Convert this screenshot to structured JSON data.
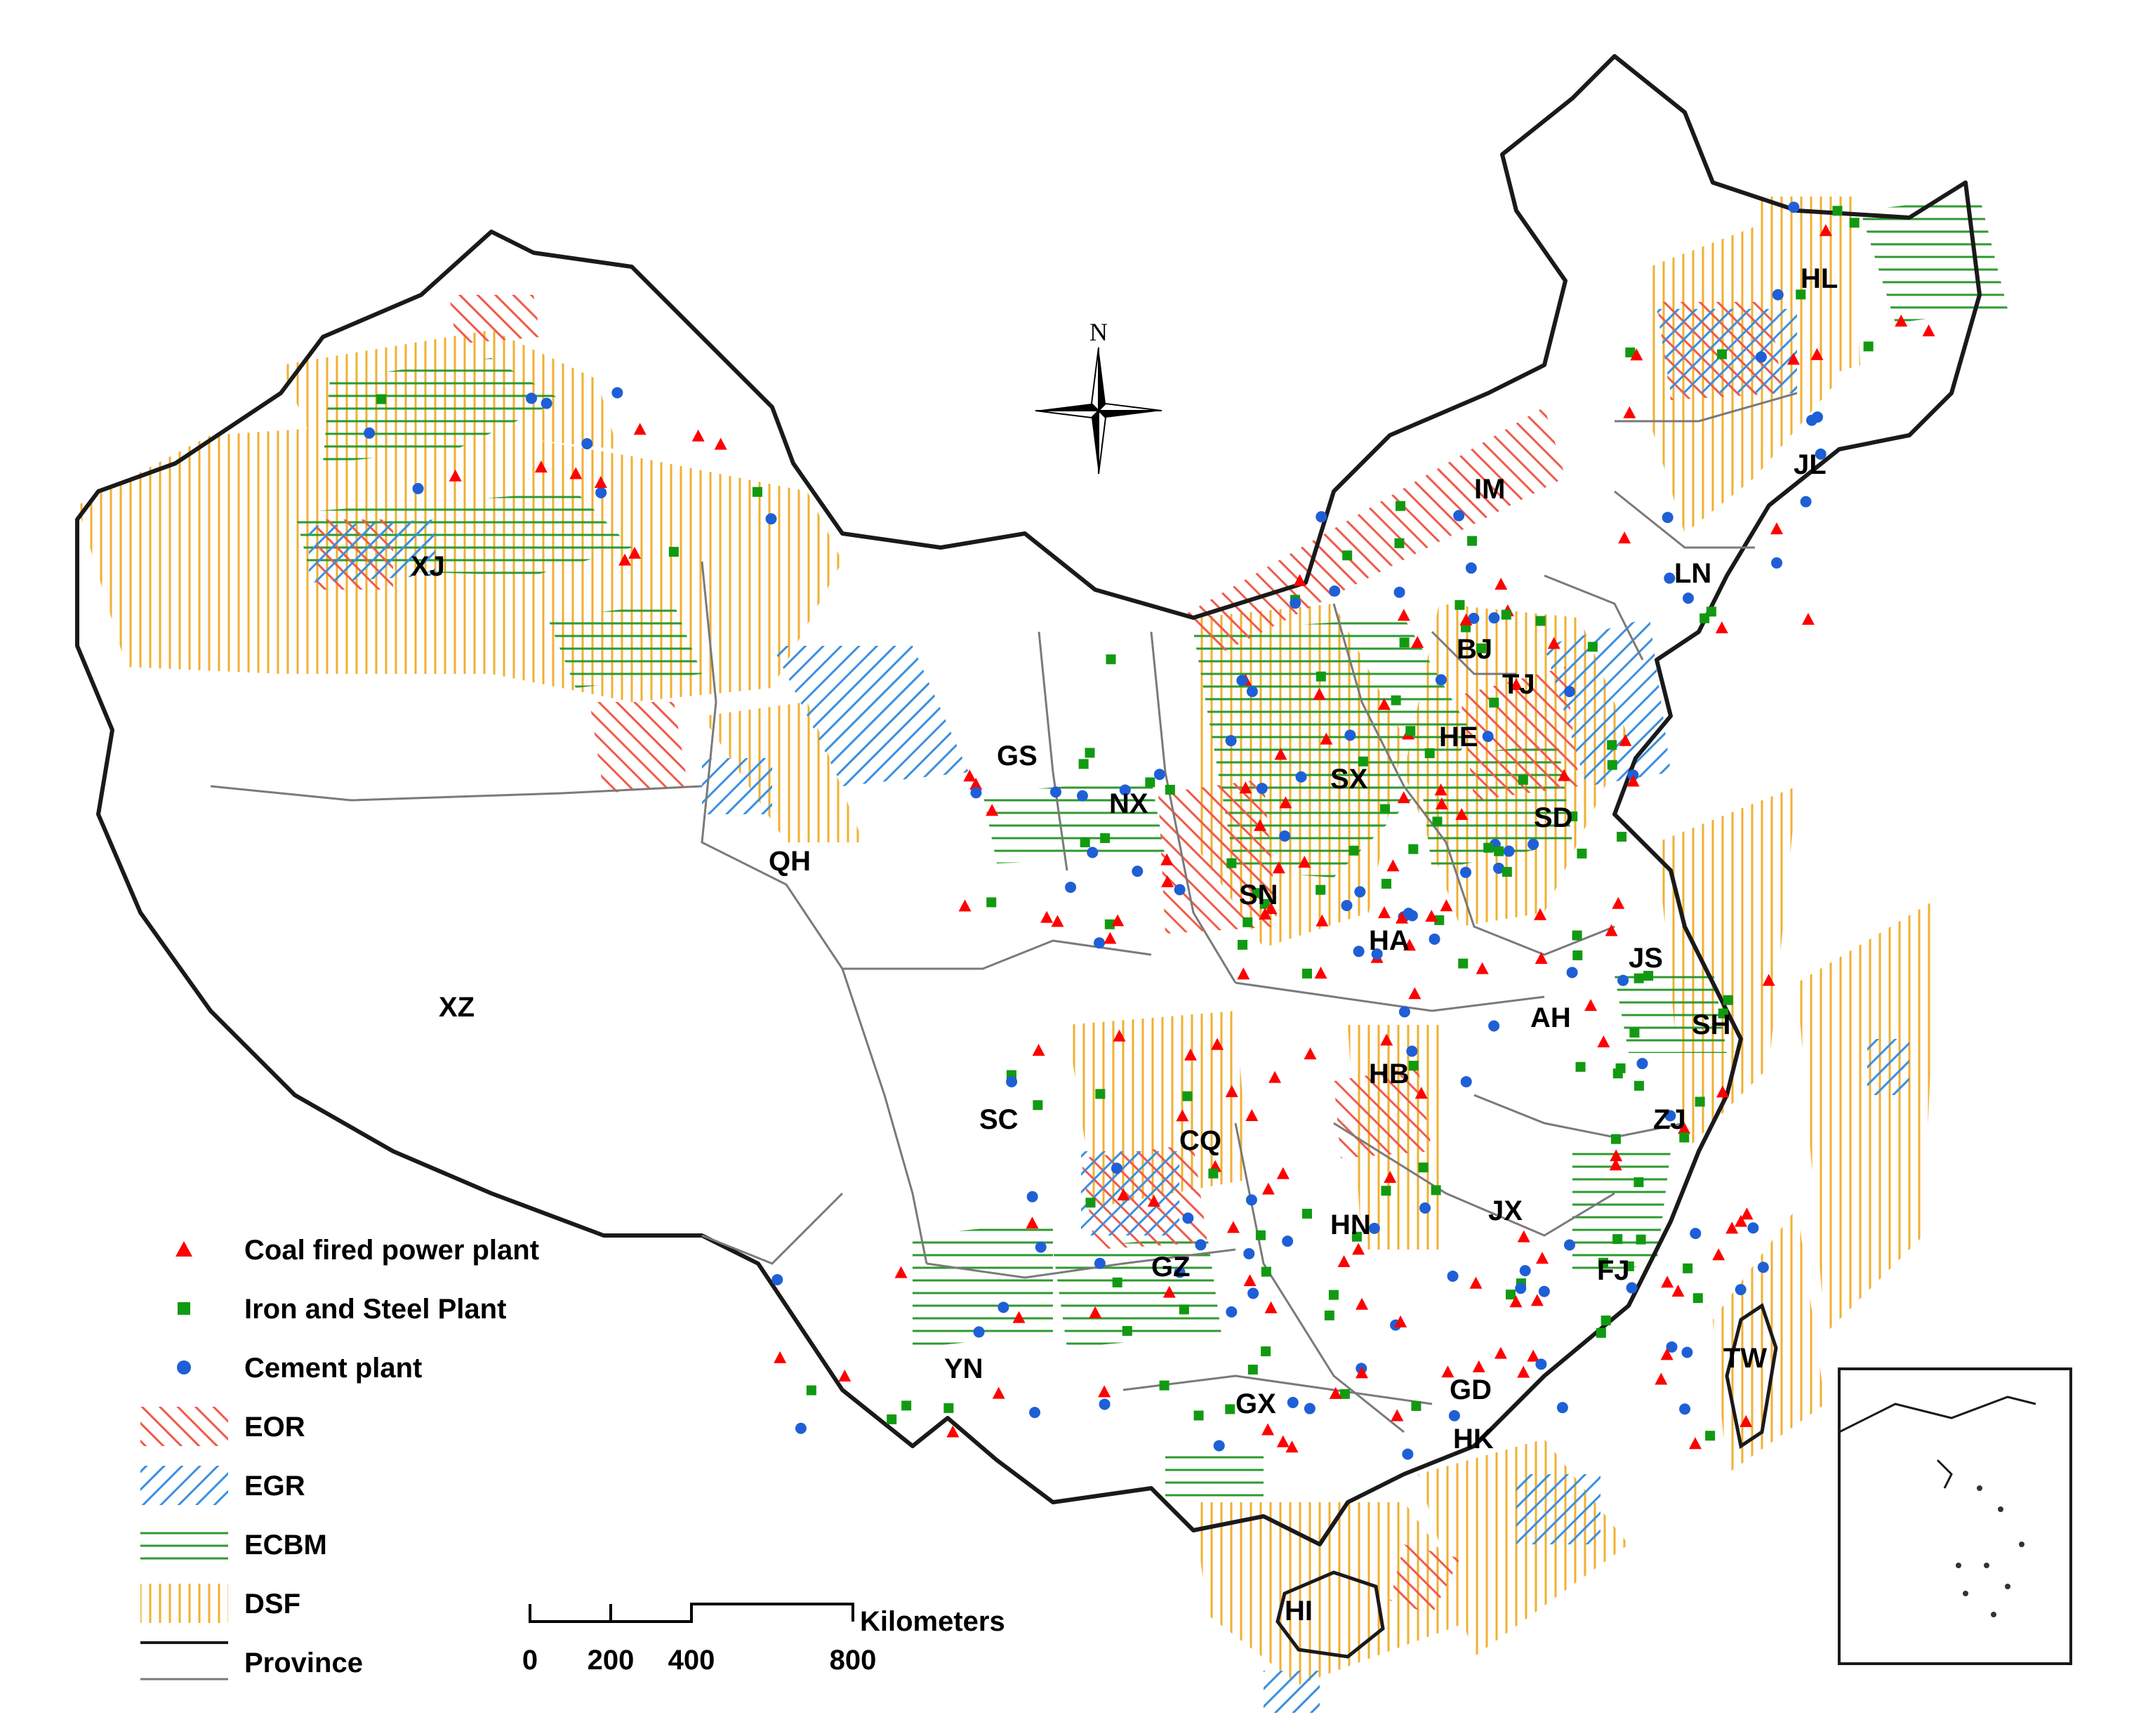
{
  "north_label": "N",
  "colors": {
    "power": "#ff0000",
    "steel": "#119a11",
    "cement": "#1f5fd6",
    "eor": "#f05a4a",
    "egr": "#3a8fe0",
    "ecbm": "#2e9a2e",
    "dsf": "#f0b030",
    "border": "#1a1a1a",
    "province_line": "#7a7a7a"
  },
  "provinces": [
    {
      "code": "HL"
    },
    {
      "code": "JL"
    },
    {
      "code": "LN"
    },
    {
      "code": "IM"
    },
    {
      "code": "BJ"
    },
    {
      "code": "TJ"
    },
    {
      "code": "HE"
    },
    {
      "code": "SX"
    },
    {
      "code": "SD"
    },
    {
      "code": "XJ"
    },
    {
      "code": "GS"
    },
    {
      "code": "NX"
    },
    {
      "code": "QH"
    },
    {
      "code": "SN"
    },
    {
      "code": "HA"
    },
    {
      "code": "JS"
    },
    {
      "code": "SH"
    },
    {
      "code": "AH"
    },
    {
      "code": "XZ"
    },
    {
      "code": "SC"
    },
    {
      "code": "CQ"
    },
    {
      "code": "HB"
    },
    {
      "code": "ZJ"
    },
    {
      "code": "HN"
    },
    {
      "code": "JX"
    },
    {
      "code": "GZ"
    },
    {
      "code": "FJ"
    },
    {
      "code": "YN"
    },
    {
      "code": "TW"
    },
    {
      "code": "GX"
    },
    {
      "code": "GD"
    },
    {
      "code": "HK"
    },
    {
      "code": "HI"
    }
  ],
  "legend": [
    {
      "key": "power",
      "label": "Coal fired power plant",
      "symbol": "triangle-icon"
    },
    {
      "key": "steel",
      "label": "Iron and Steel Plant",
      "symbol": "square-icon"
    },
    {
      "key": "cement",
      "label": "Cement plant",
      "symbol": "star-icon"
    },
    {
      "key": "eor",
      "label": "EOR",
      "symbol": "eor-hatch-icon"
    },
    {
      "key": "egr",
      "label": "EGR",
      "symbol": "egr-hatch-icon"
    },
    {
      "key": "ecbm",
      "label": "ECBM",
      "symbol": "ecbm-hatch-icon"
    },
    {
      "key": "dsf",
      "label": "DSF",
      "symbol": "dsf-hatch-icon"
    },
    {
      "key": "province",
      "label": "Province",
      "symbol": "province-line-icon"
    }
  ],
  "scale_bar": {
    "unit": "Kilometers",
    "ticks": [
      "0",
      "200",
      "400",
      "800"
    ]
  }
}
